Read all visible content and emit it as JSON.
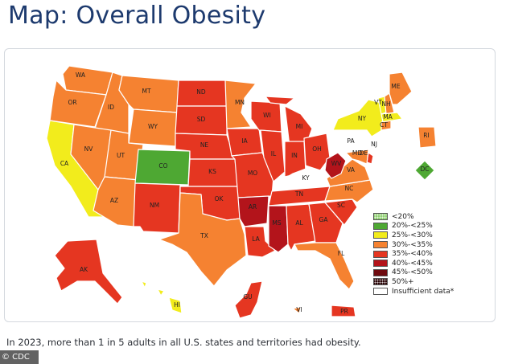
{
  "page": {
    "title": "Map: Overall Obesity",
    "caption": "In 2023, more than 1 in 5 adults in all U.S. states and territories had obesity.",
    "credit": "© CDC"
  },
  "legend": [
    {
      "label": "<20%",
      "color": "#8fd071",
      "pattern": true
    },
    {
      "label": "20%-<25%",
      "color": "#4ea833"
    },
    {
      "label": "25%-<30%",
      "color": "#f2ec1c"
    },
    {
      "label": "30%-<35%",
      "color": "#f58231"
    },
    {
      "label": "35%-<40%",
      "color": "#e53621"
    },
    {
      "label": "40%-<45%",
      "color": "#b3141b"
    },
    {
      "label": "45%-<50%",
      "color": "#6e0a0f"
    },
    {
      "label": "50%+",
      "color": "#2a0406",
      "pattern": true
    },
    {
      "label": "Insufficient data*",
      "color": "#ffffff"
    }
  ],
  "states": [
    {
      "abbr": "WA",
      "category": "30%-<35%"
    },
    {
      "abbr": "OR",
      "category": "30%-<35%"
    },
    {
      "abbr": "CA",
      "category": "25%-<30%"
    },
    {
      "abbr": "ID",
      "category": "30%-<35%"
    },
    {
      "abbr": "NV",
      "category": "30%-<35%"
    },
    {
      "abbr": "MT",
      "category": "30%-<35%"
    },
    {
      "abbr": "WY",
      "category": "30%-<35%"
    },
    {
      "abbr": "UT",
      "category": "30%-<35%"
    },
    {
      "abbr": "AZ",
      "category": "30%-<35%"
    },
    {
      "abbr": "CO",
      "category": "20%-<25%"
    },
    {
      "abbr": "NM",
      "category": "35%-<40%"
    },
    {
      "abbr": "ND",
      "category": "35%-<40%"
    },
    {
      "abbr": "SD",
      "category": "35%-<40%"
    },
    {
      "abbr": "NE",
      "category": "35%-<40%"
    },
    {
      "abbr": "KS",
      "category": "35%-<40%"
    },
    {
      "abbr": "OK",
      "category": "35%-<40%"
    },
    {
      "abbr": "TX",
      "category": "30%-<35%"
    },
    {
      "abbr": "MN",
      "category": "30%-<35%"
    },
    {
      "abbr": "IA",
      "category": "35%-<40%"
    },
    {
      "abbr": "MO",
      "category": "35%-<40%"
    },
    {
      "abbr": "AR",
      "category": "40%-<45%"
    },
    {
      "abbr": "LA",
      "category": "35%-<40%"
    },
    {
      "abbr": "WI",
      "category": "35%-<40%"
    },
    {
      "abbr": "IL",
      "category": "35%-<40%"
    },
    {
      "abbr": "MI",
      "category": "35%-<40%"
    },
    {
      "abbr": "IN",
      "category": "35%-<40%"
    },
    {
      "abbr": "OH",
      "category": "35%-<40%"
    },
    {
      "abbr": "KY",
      "category": "Insufficient data*"
    },
    {
      "abbr": "TN",
      "category": "35%-<40%"
    },
    {
      "abbr": "MS",
      "category": "40%-<45%"
    },
    {
      "abbr": "AL",
      "category": "35%-<40%"
    },
    {
      "abbr": "GA",
      "category": "35%-<40%"
    },
    {
      "abbr": "FL",
      "category": "30%-<35%"
    },
    {
      "abbr": "SC",
      "category": "35%-<40%"
    },
    {
      "abbr": "NC",
      "category": "30%-<35%"
    },
    {
      "abbr": "VA",
      "category": "30%-<35%"
    },
    {
      "abbr": "WV",
      "category": "40%-<45%"
    },
    {
      "abbr": "PA",
      "category": "Insufficient data*"
    },
    {
      "abbr": "NY",
      "category": "25%-<30%"
    },
    {
      "abbr": "VT",
      "category": "25%-<30%"
    },
    {
      "abbr": "NH",
      "category": "30%-<35%"
    },
    {
      "abbr": "ME",
      "category": "30%-<35%"
    },
    {
      "abbr": "MA",
      "category": "25%-<30%"
    },
    {
      "abbr": "CT",
      "category": "30%-<35%"
    },
    {
      "abbr": "RI",
      "category": "30%-<35%"
    },
    {
      "abbr": "NJ",
      "category": "Insufficient data*"
    },
    {
      "abbr": "DE",
      "category": "35%-<40%"
    },
    {
      "abbr": "MD",
      "category": "30%-<35%"
    },
    {
      "abbr": "DC",
      "category": "20%-<25%"
    },
    {
      "abbr": "AK",
      "category": "35%-<40%"
    },
    {
      "abbr": "HI",
      "category": "25%-<30%"
    },
    {
      "abbr": "GU",
      "category": "35%-<40%"
    },
    {
      "abbr": "VI",
      "category": "30%-<35%"
    },
    {
      "abbr": "PR",
      "category": "35%-<40%"
    }
  ]
}
